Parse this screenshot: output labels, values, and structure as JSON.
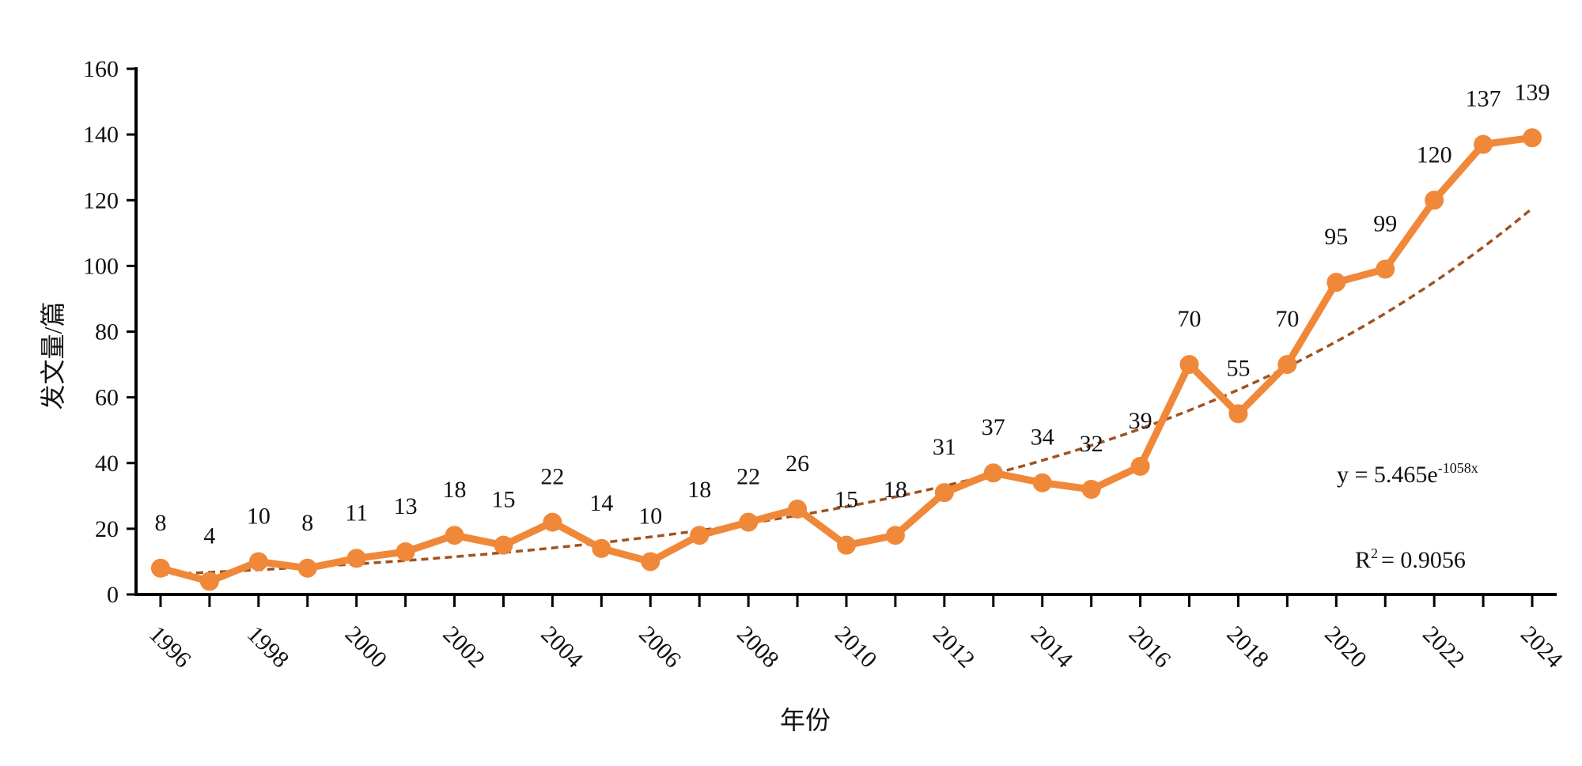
{
  "chart_data": {
    "type": "line",
    "xlabel": "年份",
    "ylabel": "发文量/篇",
    "ylim": [
      0,
      160
    ],
    "yticks": [
      0,
      20,
      40,
      60,
      80,
      100,
      120,
      140,
      160
    ],
    "xlim": [
      1995.5,
      2024.5
    ],
    "xtick_labels": [
      "1996",
      "1998",
      "2000",
      "2002",
      "2004",
      "2006",
      "2008",
      "2010",
      "2012",
      "2014",
      "2016",
      "2018",
      "2020",
      "2022",
      "2024"
    ],
    "x": [
      1996,
      1997,
      1998,
      1999,
      2000,
      2001,
      2002,
      2003,
      2004,
      2005,
      2006,
      2007,
      2008,
      2009,
      2010,
      2011,
      2012,
      2013,
      2014,
      2015,
      2016,
      2017,
      2018,
      2019,
      2020,
      2021,
      2022,
      2023,
      2024
    ],
    "series": [
      {
        "values": [
          8,
          4,
          10,
          8,
          11,
          13,
          18,
          15,
          22,
          14,
          10,
          18,
          22,
          26,
          15,
          18,
          31,
          37,
          34,
          32,
          39,
          70,
          55,
          70,
          95,
          99,
          120,
          137,
          139
        ],
        "color": "#F0883A"
      }
    ],
    "trendline": {
      "type": "exponential",
      "equation_main": "y = 5.465e",
      "equation_exponent": "-1058x",
      "r2_prefix": "R",
      "r2_sup": "2",
      "r2_value": "= 0.9056",
      "color": "#A0531F",
      "dashed": true
    },
    "grid": false,
    "legend": "none"
  }
}
